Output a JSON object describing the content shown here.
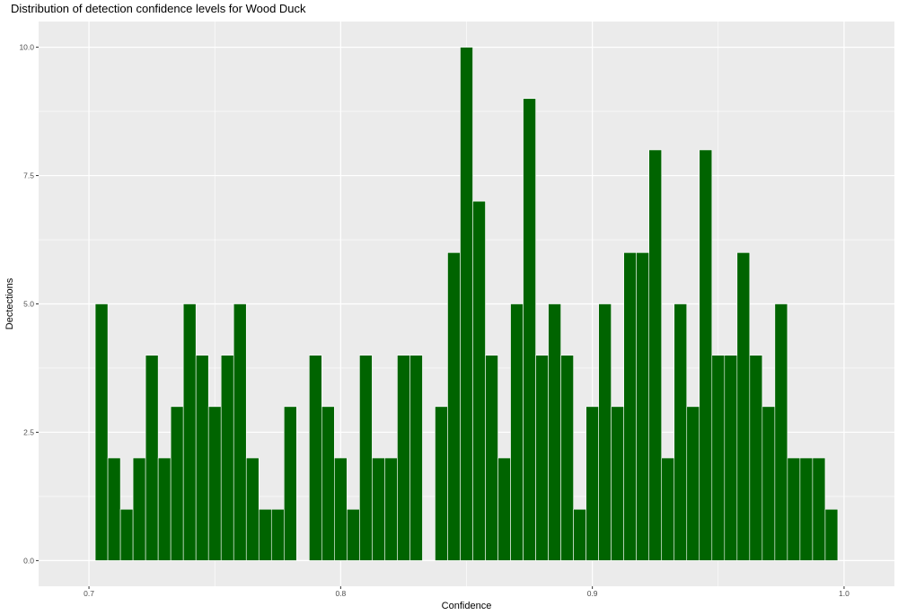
{
  "chart_data": {
    "type": "bar",
    "title": "Distribution of detection confidence levels for Wood Duck",
    "xlabel": "Confidence",
    "ylabel": "Dectections",
    "xlim": [
      0.68,
      1.02
    ],
    "ylim": [
      -0.5,
      10.5
    ],
    "x_ticks": [
      0.7,
      0.8,
      0.9,
      1.0
    ],
    "x_tick_labels": [
      "0.7",
      "0.8",
      "0.9",
      "1.0"
    ],
    "y_ticks": [
      0,
      2.5,
      5,
      7.5,
      10
    ],
    "y_tick_labels": [
      "0.0",
      "2.5",
      "5.0",
      "7.5",
      "10.0"
    ],
    "bin_width": 0.005,
    "bar_color": "#006400",
    "bar_outline_color": "#ffffff",
    "panel_background": "#ebebeb",
    "grid_color": "#ffffff",
    "grid": true,
    "legend": "none",
    "x": [
      0.705,
      0.71,
      0.715,
      0.72,
      0.725,
      0.73,
      0.735,
      0.74,
      0.745,
      0.75,
      0.755,
      0.76,
      0.765,
      0.77,
      0.775,
      0.78,
      0.785,
      0.79,
      0.795,
      0.8,
      0.805,
      0.81,
      0.815,
      0.82,
      0.825,
      0.83,
      0.835,
      0.84,
      0.845,
      0.85,
      0.855,
      0.86,
      0.865,
      0.87,
      0.875,
      0.88,
      0.885,
      0.89,
      0.895,
      0.9,
      0.905,
      0.91,
      0.915,
      0.92,
      0.925,
      0.93,
      0.935,
      0.94,
      0.945,
      0.95,
      0.955,
      0.96,
      0.965,
      0.97,
      0.975,
      0.98,
      0.985,
      0.99,
      0.995
    ],
    "values": [
      5,
      2,
      1,
      2,
      4,
      2,
      3,
      5,
      4,
      3,
      4,
      5,
      2,
      1,
      1,
      3,
      0,
      4,
      3,
      2,
      1,
      4,
      2,
      2,
      4,
      4,
      0,
      3,
      6,
      10,
      7,
      4,
      2,
      5,
      9,
      4,
      5,
      4,
      1,
      3,
      5,
      3,
      6,
      6,
      8,
      2,
      5,
      3,
      8,
      4,
      4,
      6,
      4,
      3,
      5,
      2,
      2,
      2,
      1
    ]
  }
}
